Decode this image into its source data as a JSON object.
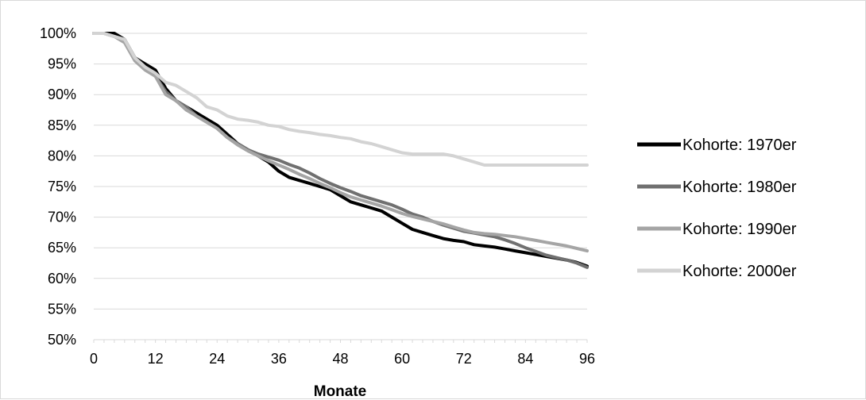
{
  "chart_data": {
    "type": "line",
    "title": "",
    "xlabel": "Monate",
    "ylabel": "",
    "x_ticks": [
      0,
      12,
      24,
      36,
      48,
      60,
      72,
      84,
      96
    ],
    "x_tick_labels": [
      "0",
      "12",
      "24",
      "36",
      "48",
      "60",
      "72",
      "84",
      "96"
    ],
    "y_ticks": [
      50,
      55,
      60,
      65,
      70,
      75,
      80,
      85,
      90,
      95,
      100
    ],
    "y_tick_labels": [
      "50%",
      "55%",
      "60%",
      "65%",
      "70%",
      "75%",
      "80%",
      "85%",
      "90%",
      "95%",
      "100%"
    ],
    "xlim": [
      0,
      96
    ],
    "ylim": [
      50,
      100
    ],
    "grid": "horizontal",
    "legend_position": "right",
    "series": [
      {
        "name": "Kohorte: 1970er",
        "color": "#000000",
        "x": [
          0,
          2,
          4,
          6,
          8,
          10,
          12,
          14,
          16,
          18,
          20,
          22,
          24,
          26,
          28,
          30,
          32,
          34,
          36,
          38,
          40,
          42,
          44,
          46,
          48,
          50,
          52,
          54,
          56,
          58,
          60,
          62,
          64,
          66,
          68,
          70,
          72,
          74,
          76,
          78,
          80,
          82,
          84,
          86,
          88,
          90,
          92,
          94,
          96
        ],
        "y": [
          100,
          100,
          100,
          99,
          96,
          95,
          94,
          91,
          89,
          88,
          87,
          86,
          85,
          83.5,
          82,
          81,
          80,
          79,
          77.5,
          76.5,
          76,
          75.5,
          75,
          74.5,
          73.5,
          72.5,
          72,
          71.5,
          71,
          70,
          69,
          68,
          67.5,
          67,
          66.5,
          66.2,
          66,
          65.5,
          65.3,
          65.1,
          64.8,
          64.5,
          64.2,
          63.9,
          63.6,
          63.3,
          63,
          62.6,
          62
        ]
      },
      {
        "name": "Kohorte: 1980er",
        "color": "#707070",
        "x": [
          0,
          2,
          4,
          6,
          8,
          10,
          12,
          14,
          16,
          18,
          20,
          22,
          24,
          26,
          28,
          30,
          32,
          34,
          36,
          38,
          40,
          42,
          44,
          46,
          48,
          50,
          52,
          54,
          56,
          58,
          60,
          62,
          64,
          66,
          68,
          70,
          72,
          74,
          76,
          78,
          80,
          82,
          84,
          86,
          88,
          90,
          92,
          94,
          96
        ],
        "y": [
          100,
          100,
          99.5,
          99,
          96,
          94.5,
          93,
          90.5,
          89,
          88,
          86.5,
          85.5,
          84.5,
          83,
          82,
          81,
          80.3,
          79.8,
          79.3,
          78.6,
          78,
          77.2,
          76.3,
          75.5,
          74.8,
          74.2,
          73.5,
          73,
          72.5,
          72,
          71.3,
          70.5,
          70,
          69.3,
          68.7,
          68.2,
          67.7,
          67.4,
          67.1,
          66.8,
          66.3,
          65.7,
          65,
          64.4,
          63.8,
          63.4,
          63,
          62.5,
          61.8
        ]
      },
      {
        "name": "Kohorte: 1990er",
        "color": "#a5a5a5",
        "x": [
          0,
          2,
          4,
          6,
          8,
          10,
          12,
          14,
          16,
          18,
          20,
          22,
          24,
          26,
          28,
          30,
          32,
          34,
          36,
          38,
          40,
          42,
          44,
          46,
          48,
          50,
          52,
          54,
          56,
          58,
          60,
          62,
          64,
          66,
          68,
          70,
          72,
          74,
          76,
          78,
          80,
          82,
          84,
          86,
          88,
          90,
          92,
          94,
          96
        ],
        "y": [
          100,
          100,
          99.5,
          98.5,
          95.5,
          94,
          93,
          90,
          89,
          87.5,
          86.5,
          85.5,
          84.5,
          83,
          81.8,
          80.8,
          80,
          79.2,
          78.5,
          77.8,
          77,
          76.3,
          75.5,
          74.8,
          74,
          73.3,
          72.8,
          72.3,
          71.8,
          71.2,
          70.6,
          70.1,
          69.7,
          69.3,
          68.9,
          68.4,
          67.9,
          67.5,
          67.3,
          67.2,
          67,
          66.8,
          66.5,
          66.2,
          65.9,
          65.6,
          65.3,
          64.9,
          64.5
        ]
      },
      {
        "name": "Kohorte: 2000er",
        "color": "#d3d3d3",
        "x": [
          0,
          2,
          4,
          6,
          8,
          10,
          12,
          14,
          16,
          18,
          20,
          22,
          24,
          26,
          28,
          30,
          32,
          34,
          36,
          38,
          40,
          42,
          44,
          46,
          48,
          50,
          52,
          54,
          56,
          58,
          60,
          62,
          64,
          66,
          68,
          70,
          72,
          74,
          76,
          78,
          80,
          82,
          84,
          86,
          88,
          90,
          92,
          94,
          96
        ],
        "y": [
          100,
          100,
          99.5,
          99,
          96,
          94.5,
          93.5,
          92,
          91.5,
          90.5,
          89.5,
          88,
          87.5,
          86.5,
          86,
          85.8,
          85.5,
          85,
          84.8,
          84.3,
          84,
          83.8,
          83.5,
          83.3,
          83,
          82.8,
          82.3,
          82,
          81.5,
          81,
          80.5,
          80.3,
          80.3,
          80.3,
          80.3,
          80,
          79.5,
          79,
          78.5,
          78.5,
          78.5,
          78.5,
          78.5,
          78.5,
          78.5,
          78.5,
          78.5,
          78.5,
          78.5
        ]
      }
    ]
  }
}
